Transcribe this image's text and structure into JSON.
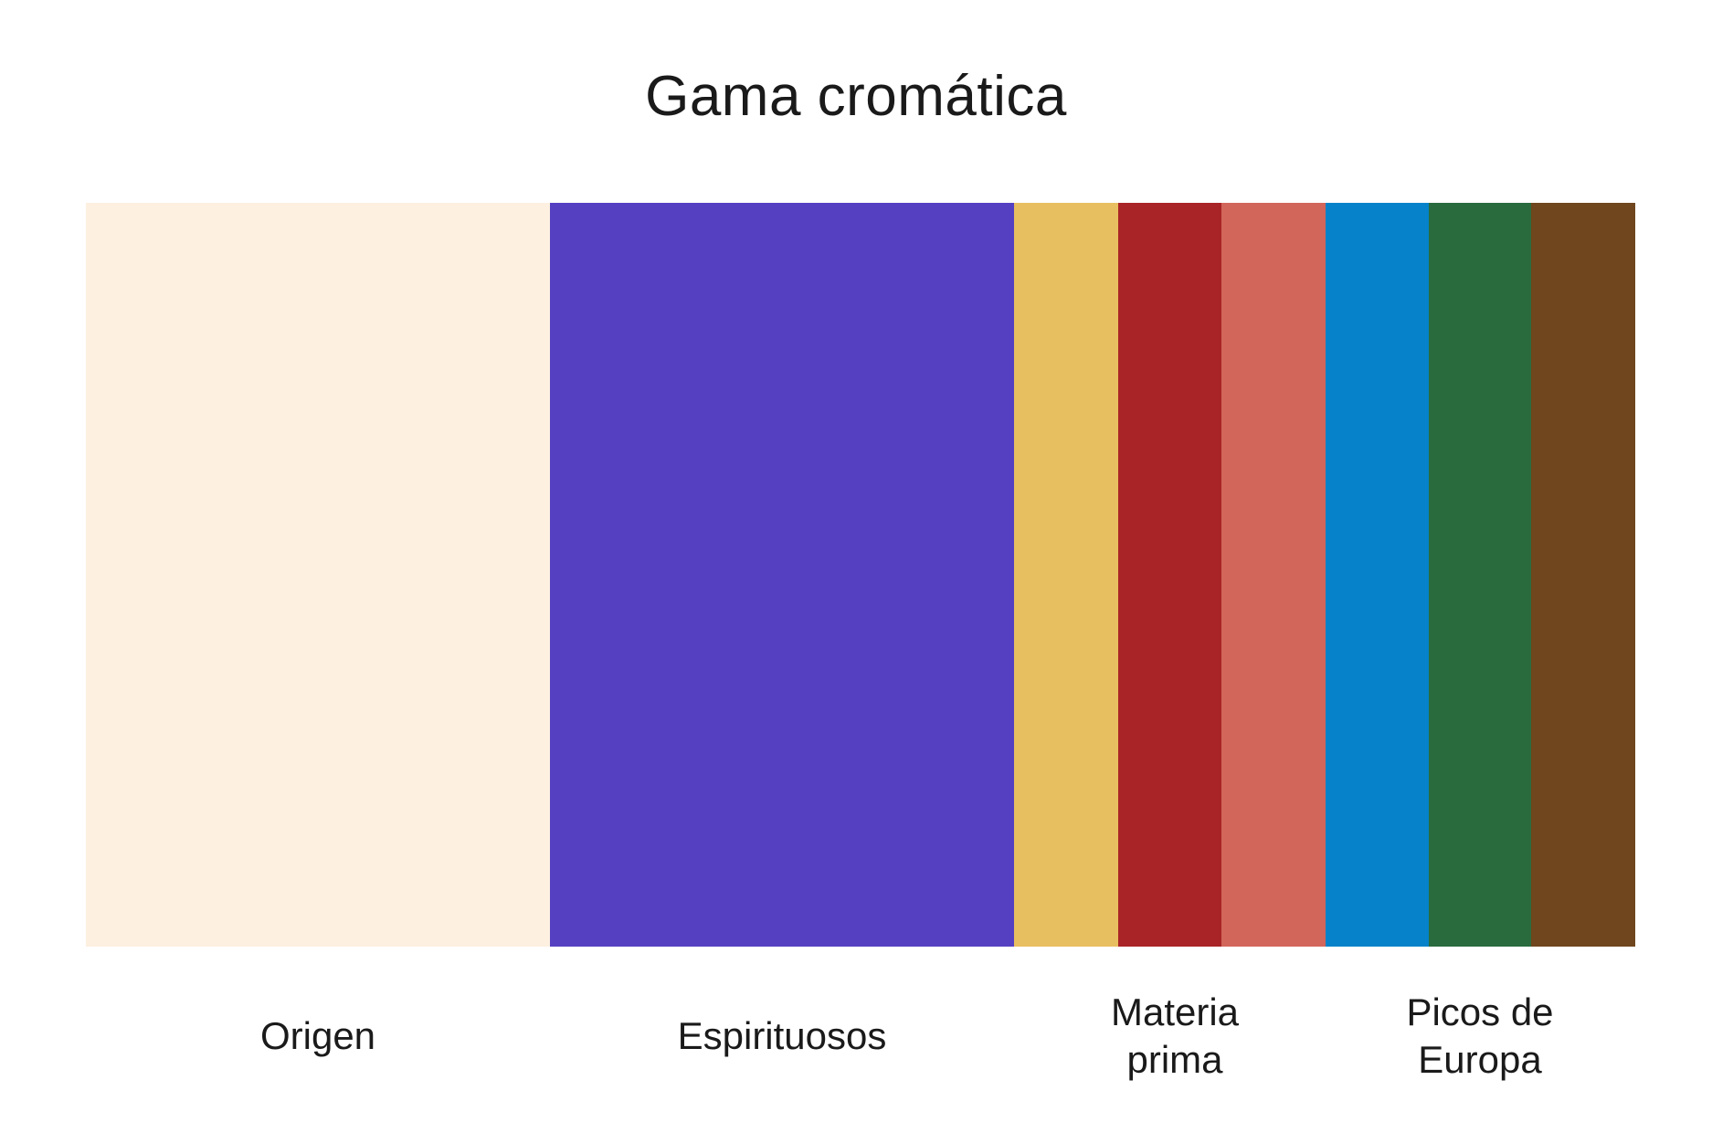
{
  "title": "Gama cromática",
  "swatches": [
    {
      "name": "swatch-cream",
      "color": "#FDF0E0"
    },
    {
      "name": "swatch-violet",
      "color": "#5540C2"
    },
    {
      "name": "swatch-mustard",
      "color": "#E8BF60"
    },
    {
      "name": "swatch-crimson",
      "color": "#A92426"
    },
    {
      "name": "swatch-coral",
      "color": "#D2665B"
    },
    {
      "name": "swatch-blue",
      "color": "#0582C9"
    },
    {
      "name": "swatch-green",
      "color": "#2A6B3E"
    },
    {
      "name": "swatch-brown",
      "color": "#6F461D"
    }
  ],
  "labels": {
    "origen": {
      "line1": "Origen"
    },
    "espirituosos": {
      "line1": "Espirituosos"
    },
    "materia_prima": {
      "line1": "Materia",
      "line2": "prima"
    },
    "picos_de_europa": {
      "line1": "Picos de",
      "line2": "Europa"
    }
  }
}
